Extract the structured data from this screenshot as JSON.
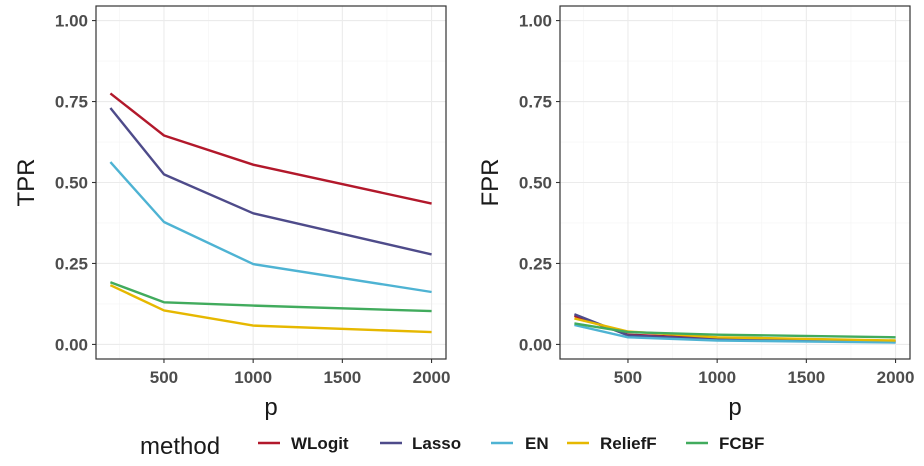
{
  "chart_data": [
    {
      "type": "line",
      "xlabel": "p",
      "ylabel": "TPR",
      "xlim": [
        200,
        2000
      ],
      "ylim": [
        0,
        1
      ],
      "xticks": [
        500,
        1000,
        1500,
        2000
      ],
      "xtick_labels": [
        "500",
        "1000",
        "1500",
        "2000"
      ],
      "yticks": [
        0,
        0.25,
        0.5,
        0.75,
        1
      ],
      "ytick_labels": [
        "0.00",
        "0.25",
        "0.50",
        "0.75",
        "1.00"
      ],
      "grid": true,
      "x": [
        200,
        500,
        1000,
        2000
      ],
      "series": [
        {
          "name": "WLogit",
          "color": "#b2182b",
          "values": [
            0.775,
            0.645,
            0.555,
            0.435
          ]
        },
        {
          "name": "Lasso",
          "color": "#4e4b8a",
          "values": [
            0.73,
            0.525,
            0.405,
            0.278
          ]
        },
        {
          "name": "EN",
          "color": "#4eb3d3",
          "values": [
            0.563,
            0.378,
            0.248,
            0.162
          ]
        },
        {
          "name": "ReliefF",
          "color": "#e6b800",
          "values": [
            0.183,
            0.105,
            0.058,
            0.038
          ]
        },
        {
          "name": "FCBF",
          "color": "#41ab5d",
          "values": [
            0.192,
            0.13,
            0.12,
            0.103
          ]
        }
      ]
    },
    {
      "type": "line",
      "xlabel": "p",
      "ylabel": "FPR",
      "xlim": [
        200,
        2000
      ],
      "ylim": [
        0,
        1
      ],
      "xticks": [
        500,
        1000,
        1500,
        2000
      ],
      "xtick_labels": [
        "500",
        "1000",
        "1500",
        "2000"
      ],
      "yticks": [
        0,
        0.25,
        0.5,
        0.75,
        1
      ],
      "ytick_labels": [
        "0.00",
        "0.25",
        "0.50",
        "0.75",
        "1.00"
      ],
      "grid": true,
      "x": [
        200,
        500,
        1000,
        2000
      ],
      "series": [
        {
          "name": "WLogit",
          "color": "#b2182b",
          "values": [
            0.088,
            0.03,
            0.018,
            0.01
          ]
        },
        {
          "name": "Lasso",
          "color": "#4e4b8a",
          "values": [
            0.093,
            0.028,
            0.015,
            0.008
          ]
        },
        {
          "name": "EN",
          "color": "#4eb3d3",
          "values": [
            0.06,
            0.022,
            0.012,
            0.006
          ]
        },
        {
          "name": "ReliefF",
          "color": "#e6b800",
          "values": [
            0.08,
            0.04,
            0.022,
            0.012
          ]
        },
        {
          "name": "FCBF",
          "color": "#41ab5d",
          "values": [
            0.065,
            0.038,
            0.03,
            0.022
          ]
        }
      ]
    }
  ],
  "legend": {
    "title": "method",
    "position": "bottom",
    "items": [
      {
        "label": "WLogit",
        "color": "#b2182b"
      },
      {
        "label": "Lasso",
        "color": "#4e4b8a"
      },
      {
        "label": "EN",
        "color": "#4eb3d3"
      },
      {
        "label": "ReliefF",
        "color": "#e6b800"
      },
      {
        "label": "FCBF",
        "color": "#41ab5d"
      }
    ]
  }
}
